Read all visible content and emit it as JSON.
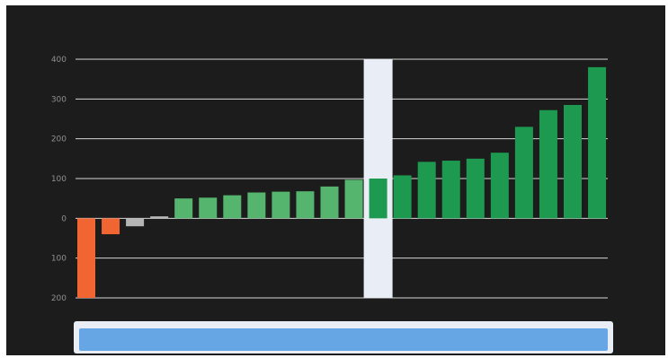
{
  "chart_data": {
    "type": "bar",
    "title": "",
    "xlabel": "",
    "ylabel": "",
    "ylim": [
      -200,
      400
    ],
    "y_ticks": [
      400,
      300,
      200,
      100,
      0,
      -100,
      -200
    ],
    "y_tick_labels": [
      "400",
      "300",
      "200",
      "100",
      "0",
      "100",
      "200"
    ],
    "grid": true,
    "values": [
      -200,
      -40,
      -20,
      5,
      50,
      52,
      58,
      65,
      67,
      68,
      80,
      97,
      100,
      108,
      142,
      145,
      150,
      165,
      230,
      272,
      285,
      380
    ],
    "bar_colors": [
      "#f06532",
      "#f06532",
      "#b5b5b5",
      "#b5b5b5",
      "#55b46d",
      "#55b46d",
      "#55b46d",
      "#55b46d",
      "#55b46d",
      "#55b46d",
      "#55b46d",
      "#55b46d",
      "#1d9a50",
      "#1d9a50",
      "#1d9a50",
      "#1d9a50",
      "#1d9a50",
      "#1d9a50",
      "#1d9a50",
      "#1d9a50",
      "#1d9a50",
      "#1d9a50"
    ],
    "highlighted_index": 12
  },
  "colors": {
    "background": "#1c1c1c",
    "gridline": "#d6d6d6",
    "highlight_band": "#e9eef6",
    "scrollbar_track": "#e9eef6",
    "scrollbar_thumb": "#66a6e5"
  }
}
